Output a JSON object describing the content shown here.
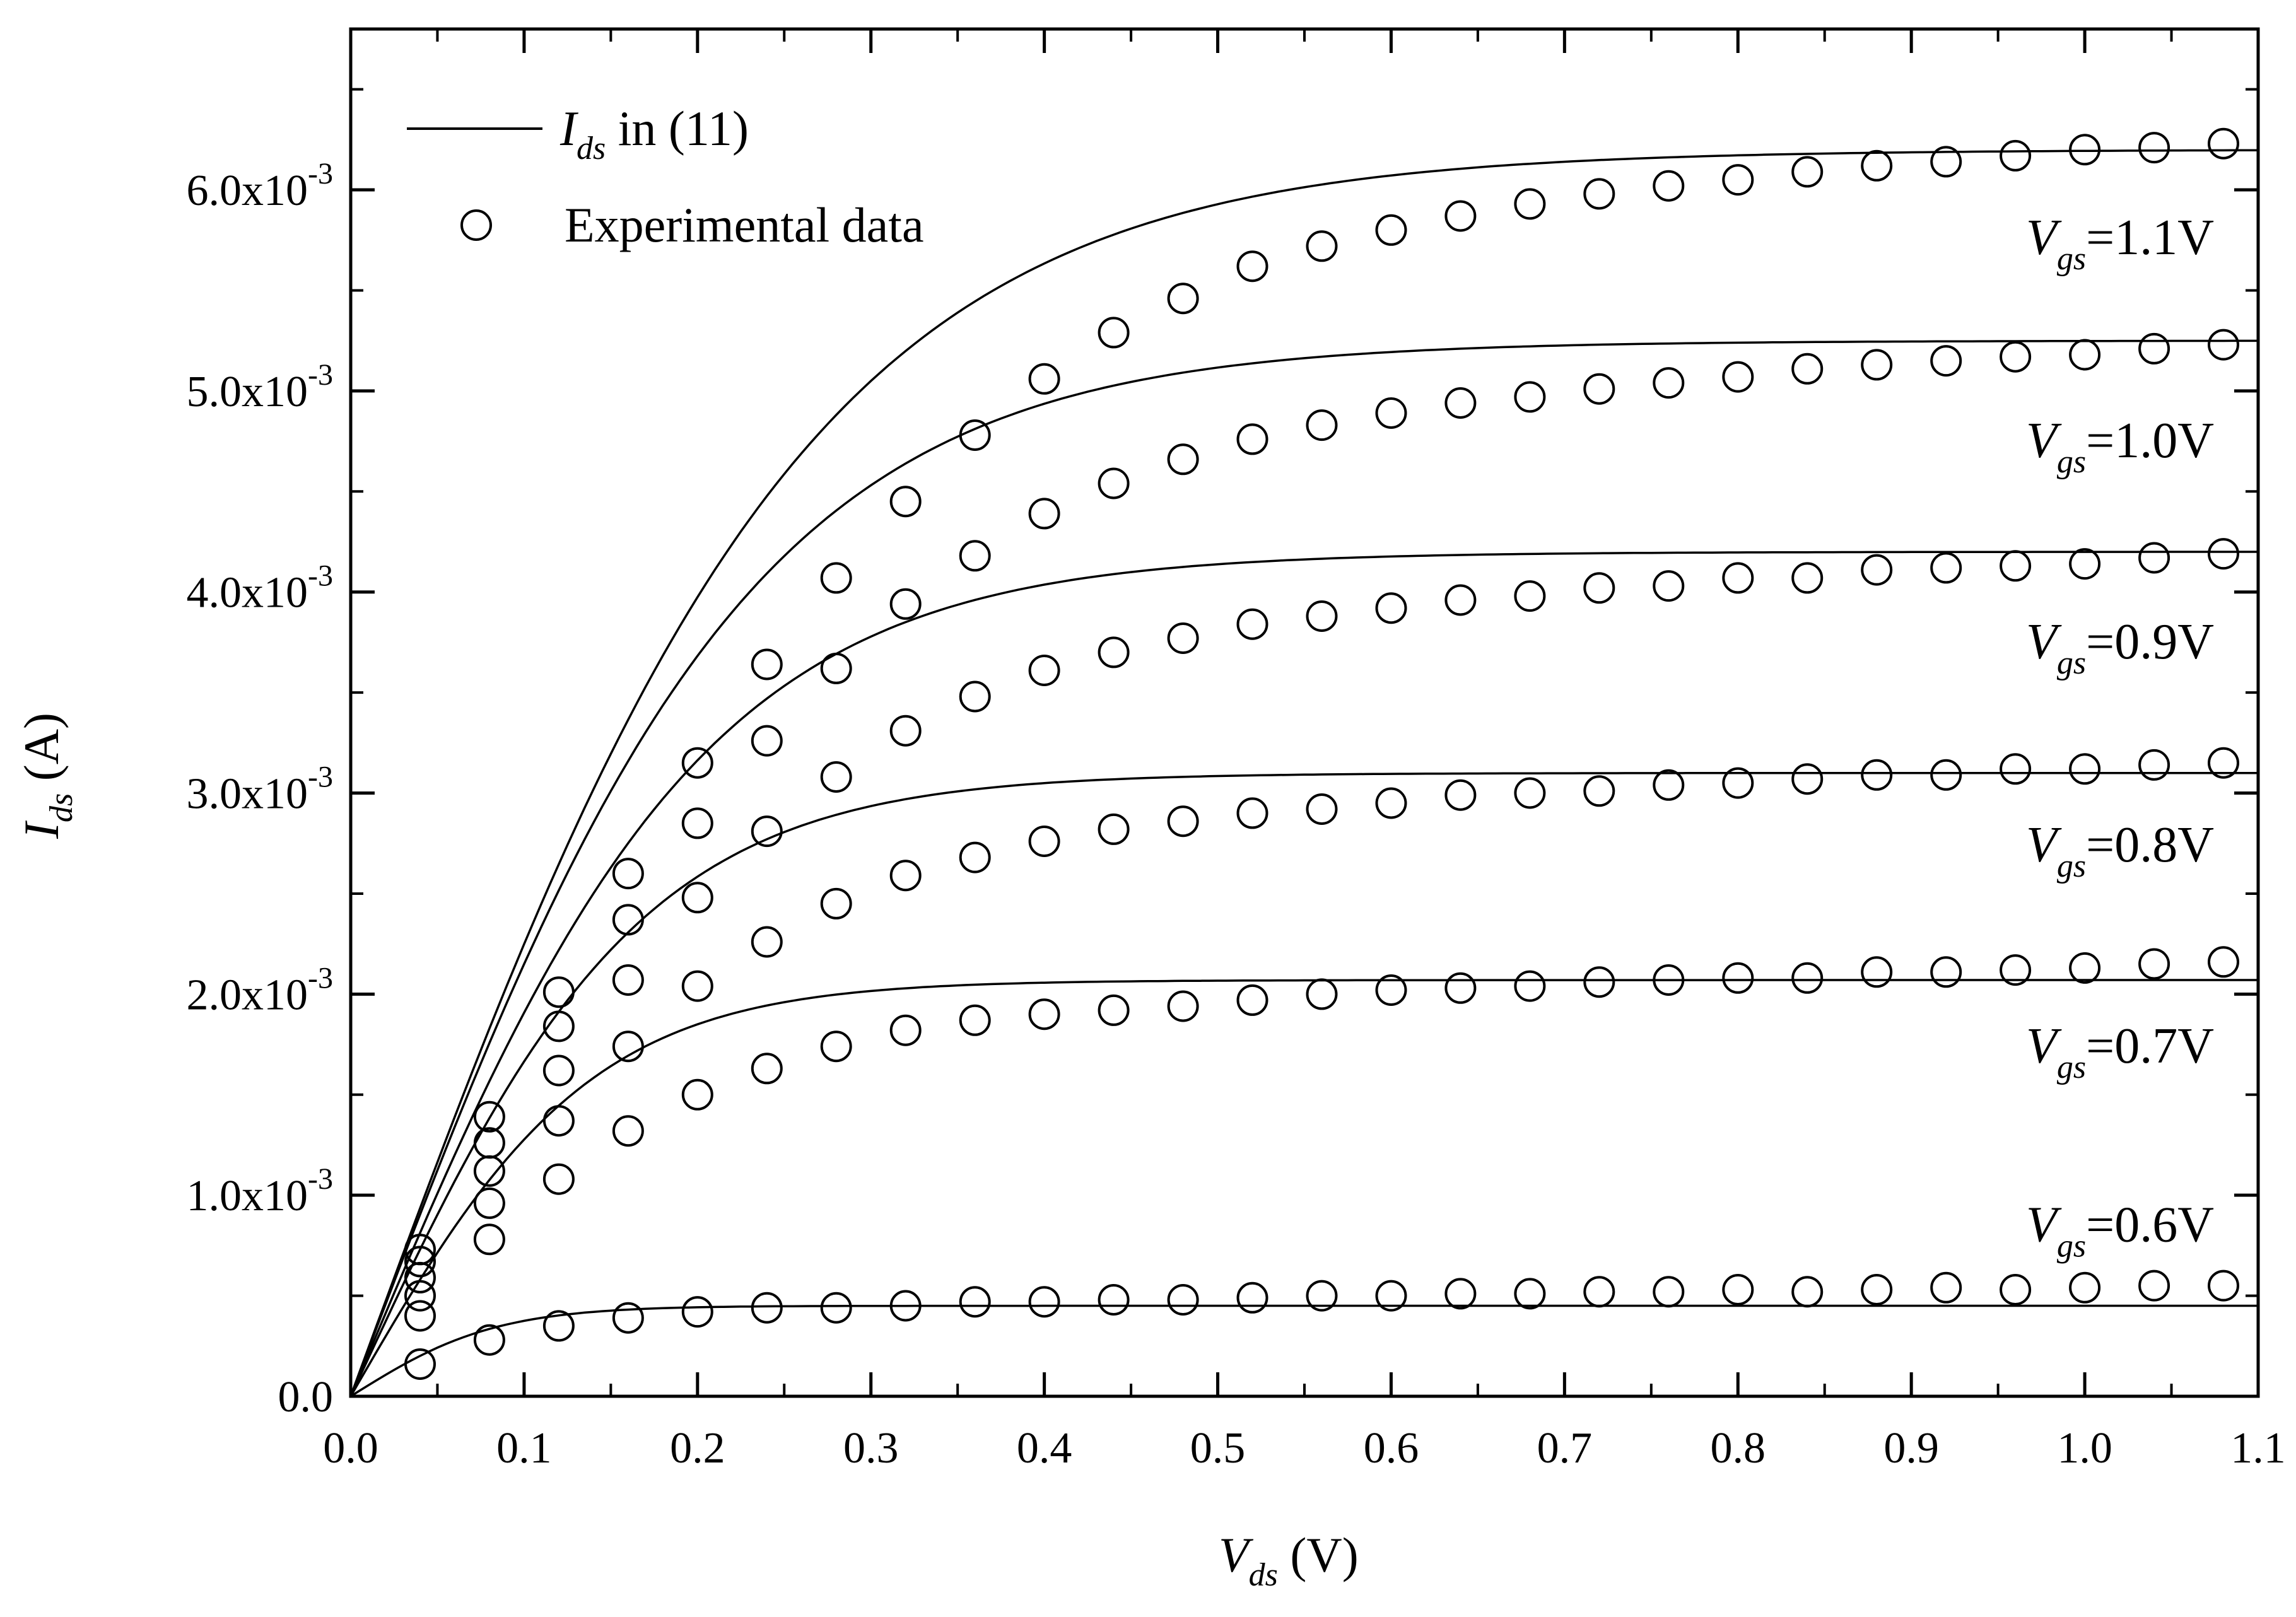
{
  "chart_data": {
    "type": "line",
    "xlabel": {
      "main": "V",
      "sub": "ds",
      "unit": " (V)"
    },
    "ylabel": {
      "main": "I",
      "sub": "ds",
      "unit": " (A)"
    },
    "xlim": [
      0.0,
      1.1
    ],
    "ylim": [
      0.0,
      0.0068
    ],
    "x_ticks": [
      0.0,
      0.1,
      0.2,
      0.3,
      0.4,
      0.5,
      0.6,
      0.7,
      0.8,
      0.9,
      1.0,
      1.1
    ],
    "x_tick_labels": [
      "0.0",
      "0.1",
      "0.2",
      "0.3",
      "0.4",
      "0.5",
      "0.6",
      "0.7",
      "0.8",
      "0.9",
      "1.0",
      "1.1"
    ],
    "y_ticks": [
      0.0,
      0.001,
      0.002,
      0.003,
      0.004,
      0.005,
      0.006
    ],
    "y_tick_labels": [
      {
        "base": "0.0",
        "exp": ""
      },
      {
        "base": "1.0x10",
        "exp": "-3"
      },
      {
        "base": "2.0x10",
        "exp": "-3"
      },
      {
        "base": "3.0x10",
        "exp": "-3"
      },
      {
        "base": "4.0x10",
        "exp": "-3"
      },
      {
        "base": "5.0x10",
        "exp": "-3"
      },
      {
        "base": "6.0x10",
        "exp": "-3"
      }
    ],
    "grid": false,
    "legend": {
      "position": "top-left",
      "entries": [
        {
          "kind": "line",
          "main": "I",
          "sub": "ds",
          "rest": " in (11)"
        },
        {
          "kind": "marker",
          "text": "Experimental data"
        }
      ]
    },
    "x_experimental": [
      0.04,
      0.08,
      0.12,
      0.16,
      0.2,
      0.24,
      0.28,
      0.32,
      0.36,
      0.4,
      0.44,
      0.48,
      0.52,
      0.56,
      0.6,
      0.64,
      0.68,
      0.72,
      0.76,
      0.8,
      0.84,
      0.88,
      0.92,
      0.96,
      1.0,
      1.04,
      1.08
    ],
    "series": [
      {
        "label": {
          "main": "V",
          "sub": "gs",
          "rest": "=1.1V"
        },
        "model_sat": 0.0062,
        "model_k": 3.8,
        "experimental": [
          0.00073,
          0.00139,
          0.00201,
          0.0026,
          0.00315,
          0.00364,
          0.00407,
          0.00445,
          0.00478,
          0.00506,
          0.00529,
          0.00546,
          0.00562,
          0.00572,
          0.0058,
          0.00587,
          0.00593,
          0.00598,
          0.00602,
          0.00605,
          0.00609,
          0.00612,
          0.00614,
          0.00617,
          0.0062,
          0.00621,
          0.00623
        ]
      },
      {
        "label": {
          "main": "V",
          "sub": "gs",
          "rest": "=1.0V"
        },
        "model_sat": 0.00525,
        "model_k": 4.35,
        "experimental": [
          0.00067,
          0.00126,
          0.00184,
          0.00237,
          0.00285,
          0.00326,
          0.00362,
          0.00394,
          0.00418,
          0.00439,
          0.00454,
          0.00466,
          0.00476,
          0.00483,
          0.00489,
          0.00494,
          0.00497,
          0.00501,
          0.00504,
          0.00507,
          0.00511,
          0.00513,
          0.00515,
          0.00517,
          0.00518,
          0.00521,
          0.00523
        ]
      },
      {
        "label": {
          "main": "V",
          "sub": "gs",
          "rest": "=0.9V"
        },
        "model_sat": 0.0042,
        "model_k": 4.9,
        "experimental": [
          0.00059,
          0.00112,
          0.00162,
          0.00207,
          0.00248,
          0.00281,
          0.00308,
          0.00331,
          0.00348,
          0.00361,
          0.0037,
          0.00377,
          0.00384,
          0.00388,
          0.00392,
          0.00396,
          0.00398,
          0.00402,
          0.00403,
          0.00407,
          0.00407,
          0.00411,
          0.00412,
          0.00413,
          0.00414,
          0.00417,
          0.00419
        ]
      },
      {
        "label": {
          "main": "V",
          "sub": "gs",
          "rest": "=0.8V"
        },
        "model_sat": 0.0031,
        "model_k": 6.0,
        "experimental": [
          0.0005,
          0.00096,
          0.00137,
          0.00174,
          0.00204,
          0.00226,
          0.00245,
          0.00259,
          0.00268,
          0.00276,
          0.00282,
          0.00286,
          0.0029,
          0.00292,
          0.00295,
          0.00299,
          0.003,
          0.00301,
          0.00304,
          0.00305,
          0.00307,
          0.00309,
          0.00309,
          0.00312,
          0.00312,
          0.00314,
          0.00315
        ]
      },
      {
        "label": {
          "main": "V",
          "sub": "gs",
          "rest": "=0.7V"
        },
        "model_sat": 0.00207,
        "model_k": 7.2,
        "experimental": [
          0.0004,
          0.00078,
          0.00108,
          0.00132,
          0.0015,
          0.00163,
          0.00174,
          0.00182,
          0.00187,
          0.0019,
          0.00192,
          0.00194,
          0.00197,
          0.002,
          0.00202,
          0.00203,
          0.00204,
          0.00206,
          0.00207,
          0.00208,
          0.00208,
          0.00211,
          0.00211,
          0.00212,
          0.00213,
          0.00215,
          0.00216
        ]
      },
      {
        "label": {
          "main": "V",
          "sub": "gs",
          "rest": "=0.6V"
        },
        "model_sat": 0.00045,
        "model_k": 12.0,
        "experimental": [
          0.00016,
          0.00028,
          0.00035,
          0.00039,
          0.00042,
          0.00044,
          0.00044,
          0.00045,
          0.00047,
          0.00047,
          0.00048,
          0.00048,
          0.00049,
          0.0005,
          0.0005,
          0.00051,
          0.00051,
          0.00052,
          0.00052,
          0.00053,
          0.00052,
          0.00053,
          0.00054,
          0.00053,
          0.00054,
          0.00055,
          0.00055
        ]
      }
    ]
  }
}
